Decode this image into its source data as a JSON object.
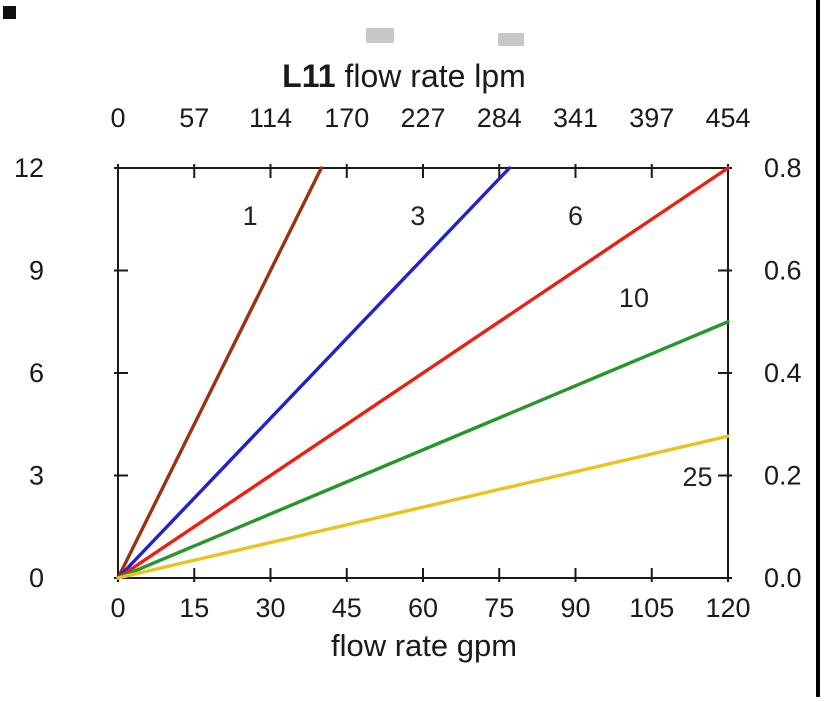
{
  "chart_data": {
    "type": "line",
    "title_bold": "L11",
    "title_rest": " flow rate lpm",
    "top_axis": {
      "label": "L11 flow rate lpm",
      "units": "lpm",
      "tick_labels": [
        "0",
        "57",
        "114",
        "170",
        "227",
        "284",
        "341",
        "397",
        "454"
      ]
    },
    "bottom_axis": {
      "label": "flow rate gpm",
      "units": "gpm",
      "tick_labels": [
        "0",
        "15",
        "30",
        "45",
        "60",
        "75",
        "90",
        "105",
        "120"
      ]
    },
    "left_axis": {
      "tick_labels": [
        "0",
        "3",
        "6",
        "9",
        "12"
      ]
    },
    "right_axis": {
      "tick_labels": [
        "0.0",
        "0.2",
        "0.4",
        "0.6",
        "0.8"
      ]
    },
    "x_range": [
      0,
      120
    ],
    "y_range": [
      0,
      12
    ],
    "grid": false,
    "legend": "inline-labels",
    "series": [
      {
        "name": "1",
        "color": "#993311",
        "points": [
          [
            0,
            0
          ],
          [
            40,
            12
          ]
        ],
        "label_at": [
          26,
          10.6
        ]
      },
      {
        "name": "3",
        "color": "#2222cc",
        "points": [
          [
            0,
            0
          ],
          [
            77,
            12
          ]
        ],
        "label_at": [
          59,
          10.6
        ]
      },
      {
        "name": "6",
        "color": "#e82112",
        "points": [
          [
            0,
            0
          ],
          [
            120,
            12
          ]
        ],
        "label_at": [
          90,
          10.6
        ]
      },
      {
        "name": "10",
        "color": "#28962d",
        "points": [
          [
            0,
            0
          ],
          [
            120,
            7.5
          ]
        ],
        "label_at": [
          101.5,
          8.2
        ]
      },
      {
        "name": "25",
        "color": "#e9c320",
        "points": [
          [
            0,
            0
          ],
          [
            120,
            4.15
          ]
        ],
        "label_at": [
          114,
          2.95
        ]
      }
    ]
  }
}
